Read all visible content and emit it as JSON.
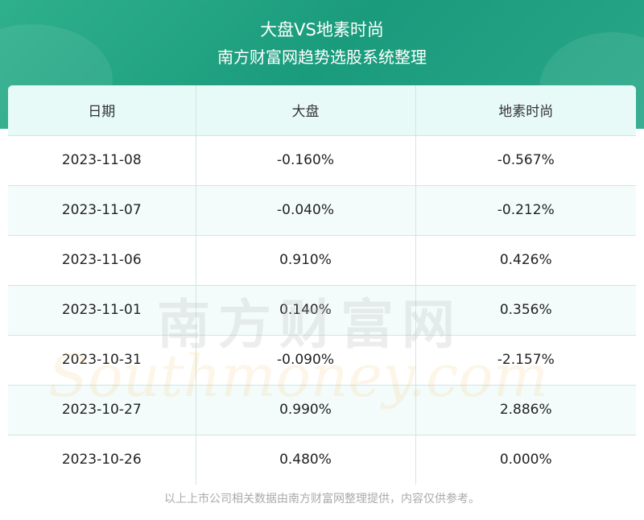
{
  "header": {
    "title": "大盘VS地素时尚",
    "subtitle": "南方财富网趋势选股系统整理"
  },
  "table": {
    "columns": [
      "日期",
      "大盘",
      "地素时尚"
    ],
    "rows": [
      [
        "2023-11-08",
        "-0.160%",
        "-0.567%"
      ],
      [
        "2023-11-07",
        "-0.040%",
        "-0.212%"
      ],
      [
        "2023-11-06",
        "0.910%",
        "0.426%"
      ],
      [
        "2023-11-01",
        "0.140%",
        "0.356%"
      ],
      [
        "2023-10-31",
        "-0.090%",
        "-2.157%"
      ],
      [
        "2023-10-27",
        "0.990%",
        "2.886%"
      ],
      [
        "2023-10-26",
        "0.480%",
        "0.000%"
      ]
    ]
  },
  "watermark": {
    "cn": "南方财富网",
    "en": "Southmoney.com"
  },
  "footer": {
    "note": "以上上市公司相关数据由南方财富网整理提供，内容仅供参考。"
  }
}
